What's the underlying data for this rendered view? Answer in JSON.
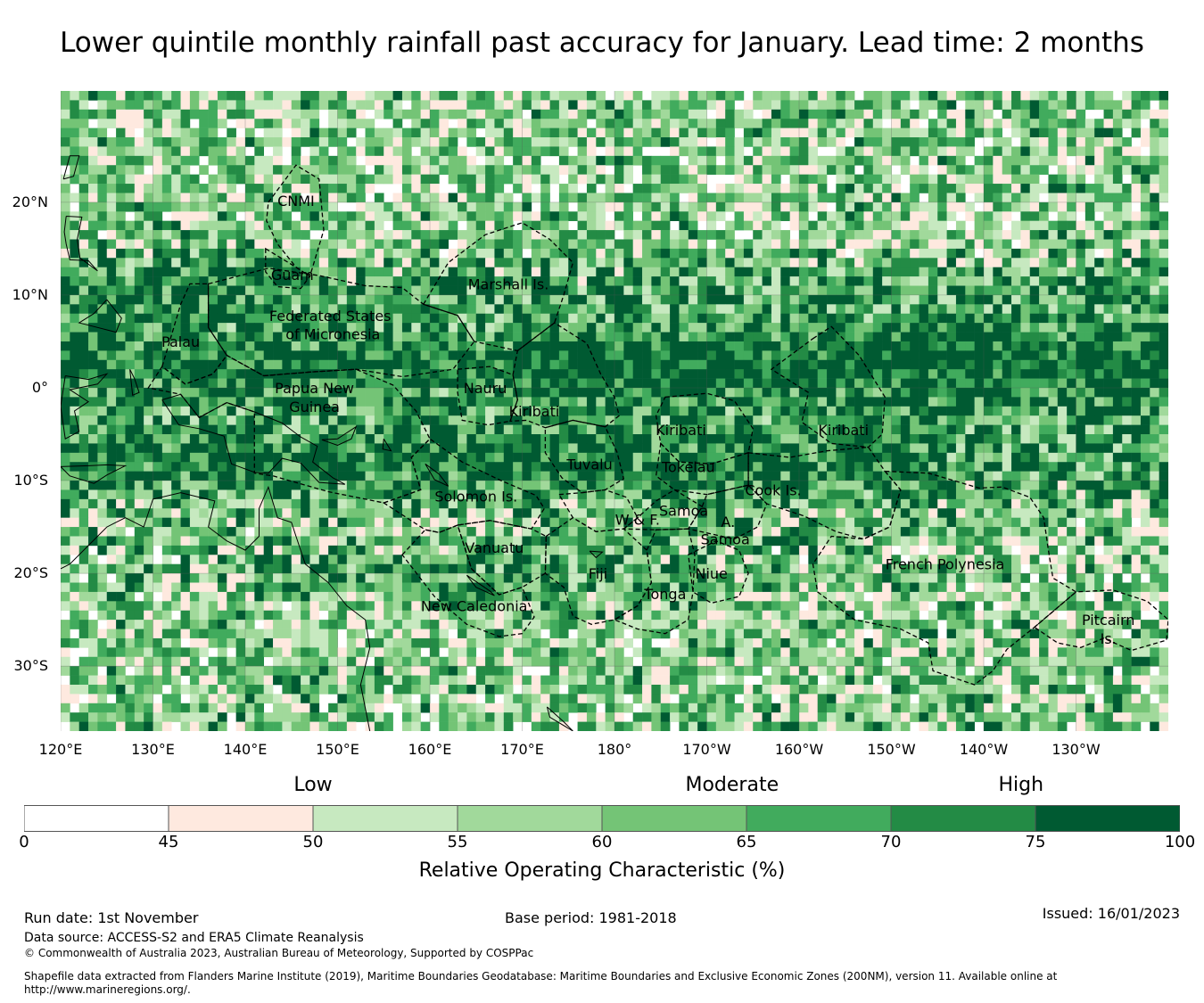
{
  "title": "Lower quintile monthly rainfall past accuracy for January. Lead time: 2 months",
  "map": {
    "lon_range": [
      120,
      240
    ],
    "lat_range": [
      -37,
      32
    ],
    "lat_ticks": [
      {
        "value": 20,
        "label": "20°N"
      },
      {
        "value": 10,
        "label": "10°N"
      },
      {
        "value": 0,
        "label": "0°"
      },
      {
        "value": -10,
        "label": "10°S"
      },
      {
        "value": -20,
        "label": "20°S"
      },
      {
        "value": -30,
        "label": "30°S"
      }
    ],
    "lon_ticks": [
      {
        "value": 120,
        "label": "120°E"
      },
      {
        "value": 130,
        "label": "130°E"
      },
      {
        "value": 140,
        "label": "140°E"
      },
      {
        "value": 150,
        "label": "150°E"
      },
      {
        "value": 160,
        "label": "160°E"
      },
      {
        "value": 170,
        "label": "170°E"
      },
      {
        "value": 180,
        "label": "180°"
      },
      {
        "value": 190,
        "label": "170°W"
      },
      {
        "value": 200,
        "label": "160°W"
      },
      {
        "value": 210,
        "label": "150°W"
      },
      {
        "value": 220,
        "label": "140°W"
      },
      {
        "value": 230,
        "label": "130°W"
      }
    ],
    "regions": [
      {
        "name": "CNMI",
        "lon": 145.5,
        "lat": 20.2
      },
      {
        "name": "Guam",
        "lon": 145.1,
        "lat": 12.2
      },
      {
        "name": "Marshall Is.",
        "lon": 168.5,
        "lat": 11.2
      },
      {
        "name": "Federated States",
        "lon": 149.2,
        "lat": 7.8
      },
      {
        "name": "of Micronesia",
        "lon": 149.5,
        "lat": 5.8
      },
      {
        "name": "Palau",
        "lon": 133.0,
        "lat": 5.0
      },
      {
        "name": "Papua New",
        "lon": 147.5,
        "lat": 0.0
      },
      {
        "name": "Guinea",
        "lon": 147.5,
        "lat": -2.0
      },
      {
        "name": "Nauru",
        "lon": 166.0,
        "lat": 0.0
      },
      {
        "name": "Kiribati",
        "lon": 171.3,
        "lat": -2.5
      },
      {
        "name": "Kiribati",
        "lon": 187.2,
        "lat": -4.5
      },
      {
        "name": "Kiribati",
        "lon": 204.8,
        "lat": -4.5
      },
      {
        "name": "Tuvalu",
        "lon": 177.3,
        "lat": -8.2
      },
      {
        "name": "Tokelau",
        "lon": 188.0,
        "lat": -8.5
      },
      {
        "name": "Cook Is.",
        "lon": 197.2,
        "lat": -11.0
      },
      {
        "name": "Solomon Is.",
        "lon": 165.0,
        "lat": -11.7
      },
      {
        "name": "Samoa",
        "lon": 187.5,
        "lat": -13.2
      },
      {
        "name": "W & F.",
        "lon": 182.5,
        "lat": -14.2
      },
      {
        "name": "A.",
        "lon": 192.3,
        "lat": -14.4
      },
      {
        "name": "Samoa",
        "lon": 192.0,
        "lat": -16.3
      },
      {
        "name": "Vanuatu",
        "lon": 167.0,
        "lat": -17.2
      },
      {
        "name": "French Polynesia",
        "lon": 215.8,
        "lat": -19.0
      },
      {
        "name": "Fiji",
        "lon": 178.2,
        "lat": -20.0
      },
      {
        "name": "Niue",
        "lon": 190.5,
        "lat": -20.0
      },
      {
        "name": "Tonga",
        "lon": 185.5,
        "lat": -22.2
      },
      {
        "name": "New Caledonia",
        "lon": 164.8,
        "lat": -23.5
      },
      {
        "name": "Pitcairn",
        "lon": 233.5,
        "lat": -25.0
      },
      {
        "name": "Is.",
        "lon": 233.5,
        "lat": -27.0
      }
    ]
  },
  "colorbar": {
    "ticks": [
      "0",
      "45",
      "50",
      "55",
      "60",
      "65",
      "70",
      "75",
      "100"
    ],
    "colors": [
      "#ffffff",
      "#fee9df",
      "#c7e9c0",
      "#a1d99b",
      "#74c476",
      "#41ab5d",
      "#238b45",
      "#005a32"
    ],
    "categories": [
      {
        "label": "Low",
        "position": 2.0
      },
      {
        "label": "Moderate",
        "position": 4.9
      },
      {
        "label": "High",
        "position": 6.9
      }
    ],
    "title": "Relative Operating Characteristic (%)"
  },
  "footer": {
    "run_date": "Run date: 1st November",
    "base_period": "Base period: 1981-2018",
    "issued": "Issued: 16/01/2023",
    "data_source": "Data source: ACCESS-S2 and ERA5 Climate Reanalysis",
    "copyright": "© Commonwealth of Australia 2023, Australian Bureau of Meteorology, Supported by COSPPac",
    "shapefile_line1": "Shapefile data extracted from Flanders Marine Institute (2019), Maritime Boundaries Geodatabase: Maritime Boundaries and Exclusive Economic Zones (200NM), version 11. Available online at",
    "shapefile_line2": "http://www.marineregions.org/."
  }
}
